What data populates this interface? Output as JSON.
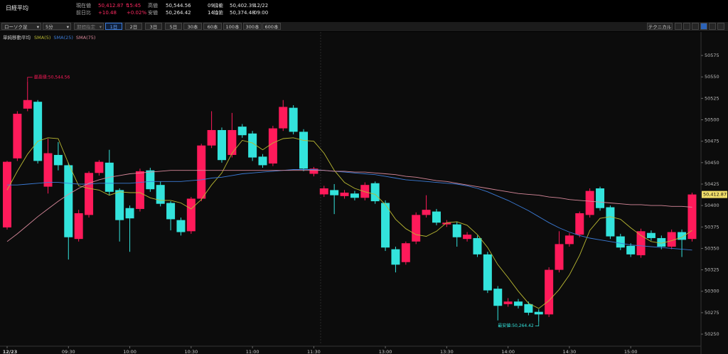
{
  "header": {
    "title": "日経平均",
    "fields": [
      {
        "label": "現在値",
        "value": "50,412.87 ↑",
        "time": "15:45",
        "color": "#ff2a62"
      },
      {
        "label": "前日比",
        "value": "+10.48",
        "time": "+0.02%",
        "color": "#ff2a62"
      },
      {
        "label": "高値",
        "value": "50,544.56",
        "time": "09:14",
        "color": "#e6e6e6"
      },
      {
        "label": "安値",
        "value": "50,264.42",
        "time": "14:17",
        "color": "#e6e6e6"
      },
      {
        "label": "前値",
        "value": "50,402.39",
        "time": "12/22",
        "color": "#e6e6e6"
      },
      {
        "label": "始値",
        "value": "50,374.48",
        "time": "09:00",
        "color": "#e6e6e6"
      }
    ]
  },
  "toolbar": {
    "selects": [
      "ローソク足",
      "5分",
      "期間指定"
    ],
    "periods": [
      "1日",
      "2日",
      "3日",
      "5日",
      "30本",
      "60本",
      "100本",
      "300本",
      "600本"
    ],
    "selected_period": "1日",
    "technical": "テクニカル"
  },
  "chart_data": {
    "type": "candlestick",
    "legend_title": "単純移動平均",
    "categories": [
      "12/23",
      null,
      null,
      null,
      null,
      null,
      "09:30",
      null,
      null,
      null,
      null,
      null,
      "10:00",
      null,
      null,
      null,
      null,
      null,
      "10:30",
      null,
      null,
      null,
      null,
      null,
      "11:00",
      null,
      null,
      null,
      null,
      null,
      "11:30",
      null,
      null,
      null,
      null,
      null,
      null,
      "13:00",
      null,
      null,
      null,
      null,
      null,
      "13:30",
      null,
      null,
      null,
      null,
      null,
      "14:00",
      null,
      null,
      null,
      null,
      null,
      "14:30",
      null,
      null,
      null,
      null,
      null,
      "15:00",
      null,
      null,
      null,
      null,
      null,
      null
    ],
    "open": [
      50374.48,
      50455,
      50513,
      50521,
      50422,
      50459,
      50447,
      50361,
      50389,
      50438,
      50450,
      50418,
      50397,
      50396,
      50441,
      50424,
      50403,
      50383,
      50370,
      50408,
      50470,
      50488,
      50459,
      50492,
      50484,
      50457,
      50449,
      50490,
      50514,
      50486,
      50437,
      50413,
      50418,
      50411,
      50414,
      50409,
      50426,
      50403,
      50349,
      50334,
      50358,
      50389,
      50393,
      50378,
      50378,
      50361,
      50362,
      50343,
      50303,
      50285,
      50288,
      50285,
      50276,
      50273,
      50325,
      50355,
      50366,
      50389,
      50420,
      50398,
      50364,
      50353,
      50342,
      50368,
      50362,
      50352,
      50369,
      50361
    ],
    "high": [
      50452,
      50510,
      50544.56,
      50523,
      50478,
      50474,
      50450,
      50395,
      50440,
      50453,
      50465,
      50420,
      50400,
      50443,
      50444,
      50428,
      50405,
      50386,
      50410,
      50472,
      50510,
      50491,
      50508,
      50495,
      50487,
      50460,
      50493,
      50523,
      50517,
      50489,
      50445,
      50423,
      50425,
      50418,
      50417,
      50427,
      50428,
      50406,
      50352,
      50358,
      50392,
      50412,
      50396,
      50383,
      50381,
      50369,
      50365,
      50346,
      50306,
      50292,
      50291,
      50288,
      50279,
      50328,
      50370,
      50368,
      50393,
      50420,
      50422,
      50400,
      50367,
      50356,
      50373,
      50371,
      50365,
      50372,
      50372,
      50415
    ],
    "low": [
      50372,
      50452,
      50510,
      50449,
      50414,
      50441,
      50337,
      50358,
      50386,
      50435,
      50412,
      50358,
      50346,
      50393,
      50416,
      50399,
      50371,
      50365,
      50367,
      50405,
      50467,
      50450,
      50456,
      50479,
      50452,
      50444,
      50446,
      50487,
      50483,
      50440,
      50434,
      50410,
      50390,
      50408,
      50406,
      50406,
      50402,
      50347,
      50322,
      50331,
      50355,
      50386,
      50377,
      50375,
      50352,
      50358,
      50340,
      50298,
      50266,
      50282,
      50280,
      50272,
      50264.42,
      50270,
      50322,
      50352,
      50363,
      50386,
      50394,
      50361,
      50348,
      50340,
      50339,
      50359,
      50349,
      50349,
      50340,
      50358
    ],
    "close": [
      50451,
      50507,
      50523,
      50452,
      50461,
      50447,
      50363,
      50391,
      50438,
      50451,
      50416,
      50383,
      50385,
      50440,
      50419,
      50402,
      50384,
      50369,
      50408,
      50470,
      50488,
      50453,
      50488,
      50482,
      50456,
      50447,
      50490,
      50515,
      50486,
      50443,
      50443,
      50420,
      50412,
      50415,
      50409,
      50424,
      50405,
      50351,
      50331,
      50356,
      50389,
      50395,
      50380,
      50380,
      50363,
      50366,
      50343,
      50301,
      50283,
      50288,
      50283,
      50275,
      50273,
      50325,
      50355,
      50365,
      50391,
      50417,
      50397,
      50364,
      50351,
      50343,
      50370,
      50362,
      50352,
      50369,
      50360,
      50412.87
    ],
    "up_color": "#ff1a5a",
    "down_color": "#33e3dc",
    "lines": [
      {
        "name": "SMA(5)",
        "color": "#b9b832",
        "values": [
          50418,
          50440,
          50460,
          50475,
          50479,
          50478,
          50449,
          50423,
          50420,
          50418,
          50412,
          50416,
          50415,
          50415,
          50409,
          50406,
          50406,
          50403,
          50396,
          50407,
          50424,
          50438,
          50461,
          50476,
          50473,
          50465,
          50473,
          50478,
          50479,
          50476,
          50475,
          50461,
          50441,
          50427,
          50420,
          50416,
          50413,
          50401,
          50384,
          50373,
          50366,
          50364,
          50370,
          50380,
          50381,
          50377,
          50366,
          50351,
          50331,
          50316,
          50300,
          50286,
          50280,
          50289,
          50302,
          50319,
          50342,
          50371,
          50385,
          50387,
          50384,
          50374,
          50365,
          50358,
          50356,
          50359,
          50363,
          50371
        ]
      },
      {
        "name": "SMA(25)",
        "color": "#3b7bd6",
        "values": [
          50424,
          50424,
          50425,
          50426,
          50427,
          50427,
          50426,
          50425,
          50425,
          50426,
          50426,
          50426,
          50426,
          50427,
          50428,
          50428,
          50428,
          50428,
          50429,
          50430,
          50432,
          50433,
          50435,
          50437,
          50438,
          50439,
          50440,
          50441,
          50442,
          50442,
          50442,
          50441,
          50440,
          50439,
          50438,
          50437,
          50436,
          50434,
          50432,
          50430,
          50429,
          50428,
          50427,
          50426,
          50425,
          50423,
          50420,
          50416,
          50411,
          50406,
          50400,
          50394,
          50387,
          50380,
          50374,
          50369,
          50365,
          50362,
          50360,
          50358,
          50356,
          50354,
          50353,
          50352,
          50351,
          50350,
          50349,
          50348
        ]
      },
      {
        "name": "SMA(75)",
        "color": "#d7889a",
        "values": [
          50358,
          50367,
          50377,
          50387,
          50396,
          50405,
          50413,
          50420,
          50426,
          50430,
          50433,
          50435,
          50437,
          50438,
          50439,
          50440,
          50441,
          50441,
          50441,
          50441,
          50441,
          50441,
          50441,
          50441,
          50441,
          50441,
          50441,
          50441,
          50441,
          50441,
          50441,
          50441,
          50440,
          50440,
          50439,
          50439,
          50438,
          50437,
          50436,
          50434,
          50433,
          50431,
          50429,
          50428,
          50426,
          50424,
          50422,
          50420,
          50418,
          50416,
          50414,
          50413,
          50412,
          50410,
          50409,
          50407,
          50406,
          50405,
          50404,
          50403,
          50402,
          50401,
          50401,
          50400,
          50400,
          50399,
          50399,
          50398
        ]
      }
    ],
    "high_label": "最高値:50,544.56",
    "low_label": "最安値:50,264.42",
    "last_label": "50,412.87",
    "ylim": [
      50237.6,
      50588.3
    ],
    "yticks": [
      50250,
      50275,
      50300,
      50325,
      50350,
      50375,
      50400,
      50425,
      50450,
      50475,
      50500,
      50525,
      50550,
      50575
    ],
    "grid": false
  }
}
